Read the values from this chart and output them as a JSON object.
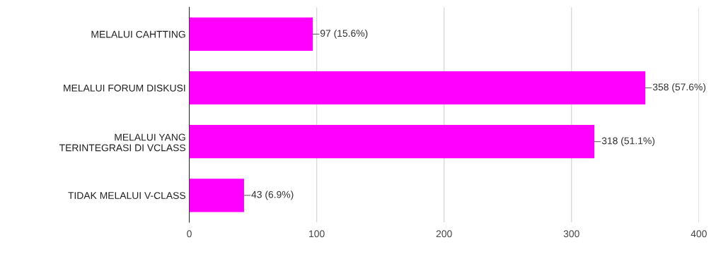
{
  "chart_data": {
    "type": "bar",
    "orientation": "horizontal",
    "categories": [
      "MELALUI CAHTTING",
      "MELALUI FORUM DISKUSI",
      "MELALUI YANG\nTERINTEGRASI DI VCLASS",
      "TIDAK MELALUI V-CLASS"
    ],
    "values": [
      97,
      358,
      318,
      43
    ],
    "value_labels": [
      "97 (15.6%)",
      "358 (57.6%)",
      "318 (51.1%)",
      "43 (6.9%)"
    ],
    "color": "#ff00ff",
    "xlim": [
      0,
      400
    ],
    "xticks": [
      0,
      100,
      200,
      300,
      400
    ],
    "grid": "x"
  }
}
